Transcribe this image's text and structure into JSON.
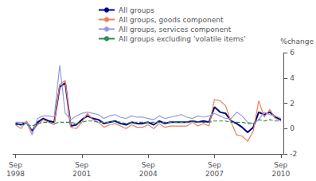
{
  "chart_data": {
    "type": "line",
    "y_label": "%change",
    "ylim": [
      -2,
      6
    ],
    "yticks": [
      -2,
      0,
      2,
      4,
      6
    ],
    "categories": [
      "Sep\n1998",
      null,
      null,
      null,
      null,
      null,
      null,
      null,
      null,
      null,
      null,
      null,
      "Sep\n2001",
      null,
      null,
      null,
      null,
      null,
      null,
      null,
      null,
      null,
      null,
      null,
      "Sep\n2004",
      null,
      null,
      null,
      null,
      null,
      null,
      null,
      null,
      null,
      null,
      null,
      "Sep\n2007",
      null,
      null,
      null,
      null,
      null,
      null,
      null,
      null,
      null,
      null,
      null,
      "Sep\n2010"
    ],
    "grid": false,
    "legend": "top",
    "series": [
      {
        "name": "All groups",
        "color": "#00008B",
        "line_style": "solid",
        "values": [
          0.4,
          0.3,
          0.5,
          -0.2,
          0.5,
          0.8,
          0.6,
          0.5,
          3.3,
          3.6,
          0.2,
          0.3,
          0.7,
          1.0,
          0.8,
          0.7,
          0.4,
          0.5,
          0.6,
          0.4,
          0.3,
          0.5,
          0.4,
          0.4,
          0.5,
          0.3,
          0.6,
          0.4,
          0.5,
          0.5,
          0.5,
          0.5,
          0.6,
          0.5,
          0.6,
          0.5,
          1.7,
          1.3,
          1.2,
          0.6,
          0.4,
          0.1,
          -0.3,
          0.1,
          1.3,
          1.1,
          1.3,
          0.9,
          0.7
        ]
      },
      {
        "name": "All groups, goods component",
        "color": "#E8825A",
        "line_style": "solid",
        "values": [
          0.3,
          0.0,
          0.6,
          -0.3,
          0.3,
          0.7,
          0.5,
          0.3,
          3.5,
          3.8,
          0.1,
          0.0,
          0.5,
          1.2,
          0.7,
          0.5,
          0.1,
          0.3,
          0.4,
          0.2,
          0.0,
          0.3,
          0.1,
          0.1,
          0.3,
          0.0,
          0.4,
          0.1,
          0.2,
          0.2,
          0.2,
          0.2,
          0.5,
          0.2,
          0.4,
          0.2,
          2.3,
          2.2,
          1.8,
          0.5,
          -0.5,
          -0.6,
          -1.0,
          -0.2,
          2.2,
          0.9,
          1.5,
          0.8,
          0.6
        ]
      },
      {
        "name": "All groups, services component",
        "color": "#9999DD",
        "line_style": "solid",
        "values": [
          0.5,
          0.5,
          0.5,
          -0.5,
          0.8,
          1.0,
          1.0,
          0.9,
          5.0,
          1.2,
          0.7,
          1.0,
          1.2,
          1.3,
          1.2,
          1.1,
          0.8,
          1.0,
          1.1,
          0.9,
          0.8,
          1.0,
          0.9,
          0.9,
          0.8,
          0.7,
          1.0,
          0.8,
          0.9,
          1.0,
          1.1,
          0.9,
          0.8,
          1.0,
          0.9,
          1.0,
          1.2,
          1.0,
          0.8,
          0.8,
          1.3,
          1.0,
          0.5,
          0.4,
          0.7,
          1.3,
          1.1,
          1.0,
          0.8
        ]
      },
      {
        "name": "All groups excluding 'volatile items'",
        "color": "#2E8B57",
        "line_style": "dashed",
        "values": [
          0.3,
          0.3,
          0.3,
          0.2,
          0.4,
          0.5,
          0.5,
          0.4,
          0.5,
          0.5,
          0.5,
          0.4,
          0.5,
          0.6,
          0.6,
          0.5,
          0.5,
          0.5,
          0.6,
          0.5,
          0.4,
          0.5,
          0.5,
          0.5,
          0.5,
          0.5,
          0.5,
          0.5,
          0.5,
          0.5,
          0.5,
          0.5,
          0.6,
          0.5,
          0.5,
          0.5,
          0.6,
          0.6,
          0.6,
          0.5,
          0.5,
          0.5,
          0.4,
          0.4,
          0.7,
          0.6,
          0.7,
          0.6,
          0.6
        ]
      }
    ]
  }
}
